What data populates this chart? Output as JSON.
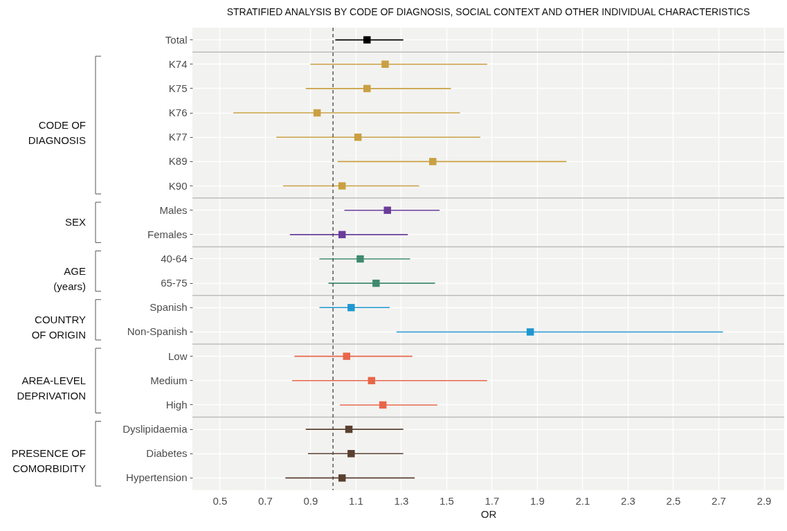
{
  "chart_data": {
    "type": "scatter",
    "orientation": "horizontal",
    "title": "STRATIFIED ANALYSIS BY CODE OF DIAGNOSIS, SOCIAL CONTEXT AND OTHER INDIVIDUAL CHARACTERISTICS",
    "xlabel": "OR",
    "categories": [
      "Total",
      "K74",
      "K75",
      "K76",
      "K77",
      "K89",
      "K90",
      "Males",
      "Females",
      "40-64",
      "65-75",
      "Spanish",
      "Non-Spanish",
      "Low",
      "Medium",
      "High",
      "Dyslipidaemia",
      "Diabetes",
      "Hypertension"
    ],
    "series": [
      {
        "color": "#000000",
        "values": [
          1.15,
          null,
          null,
          null,
          null,
          null,
          null,
          null,
          null,
          null,
          null,
          null,
          null,
          null,
          null,
          null,
          null,
          null,
          null
        ],
        "errors": [
          [
            1.01,
            1.31
          ],
          null,
          null,
          null,
          null,
          null,
          null,
          null,
          null,
          null,
          null,
          null,
          null,
          null,
          null,
          null,
          null,
          null,
          null
        ]
      },
      {
        "color": "#c9a042",
        "values": [
          null,
          1.23,
          1.15,
          0.93,
          1.11,
          1.44,
          1.04,
          null,
          null,
          null,
          null,
          null,
          null,
          null,
          null,
          null,
          null,
          null,
          null
        ],
        "errors": [
          null,
          [
            0.9,
            1.68
          ],
          [
            0.88,
            1.52
          ],
          [
            0.56,
            1.56
          ],
          [
            0.75,
            1.65
          ],
          [
            1.02,
            2.03
          ],
          [
            0.78,
            1.38
          ],
          null,
          null,
          null,
          null,
          null,
          null,
          null,
          null,
          null,
          null,
          null,
          null
        ]
      },
      {
        "color": "#6a3d9a",
        "values": [
          null,
          null,
          null,
          null,
          null,
          null,
          null,
          1.24,
          1.04,
          null,
          null,
          null,
          null,
          null,
          null,
          null,
          null,
          null,
          null
        ],
        "errors": [
          null,
          null,
          null,
          null,
          null,
          null,
          null,
          [
            1.05,
            1.47
          ],
          [
            0.81,
            1.33
          ],
          null,
          null,
          null,
          null,
          null,
          null,
          null,
          null,
          null,
          null
        ]
      },
      {
        "color": "#3f8a70",
        "values": [
          null,
          null,
          null,
          null,
          null,
          null,
          null,
          null,
          null,
          1.12,
          1.19,
          null,
          null,
          null,
          null,
          null,
          null,
          null,
          null
        ],
        "errors": [
          null,
          null,
          null,
          null,
          null,
          null,
          null,
          null,
          null,
          [
            0.94,
            1.34
          ],
          [
            0.98,
            1.45
          ],
          null,
          null,
          null,
          null,
          null,
          null,
          null,
          null
        ]
      },
      {
        "color": "#1f97d0",
        "values": [
          null,
          null,
          null,
          null,
          null,
          null,
          null,
          null,
          null,
          null,
          null,
          1.08,
          1.87,
          null,
          null,
          null,
          null,
          null,
          null
        ],
        "errors": [
          null,
          null,
          null,
          null,
          null,
          null,
          null,
          null,
          null,
          null,
          null,
          [
            0.94,
            1.25
          ],
          [
            1.28,
            2.72
          ],
          null,
          null,
          null,
          null,
          null,
          null
        ]
      },
      {
        "color": "#e8664a",
        "values": [
          null,
          null,
          null,
          null,
          null,
          null,
          null,
          null,
          null,
          null,
          null,
          null,
          null,
          1.06,
          1.17,
          1.22,
          null,
          null,
          null
        ],
        "errors": [
          null,
          null,
          null,
          null,
          null,
          null,
          null,
          null,
          null,
          null,
          null,
          null,
          null,
          [
            0.83,
            1.35
          ],
          [
            0.82,
            1.68
          ],
          [
            1.03,
            1.46
          ],
          null,
          null,
          null
        ]
      },
      {
        "color": "#5a4030",
        "values": [
          null,
          null,
          null,
          null,
          null,
          null,
          null,
          null,
          null,
          null,
          null,
          null,
          null,
          null,
          null,
          null,
          1.07,
          1.08,
          1.04
        ],
        "errors": [
          null,
          null,
          null,
          null,
          null,
          null,
          null,
          null,
          null,
          null,
          null,
          null,
          null,
          null,
          null,
          null,
          [
            0.88,
            1.31
          ],
          [
            0.89,
            1.31
          ],
          [
            0.79,
            1.36
          ]
        ]
      }
    ],
    "annotations": [
      "CODE OF DIAGNOSIS",
      "SEX",
      "AGE (years)",
      "COUNTRY OF ORIGIN",
      "AREA-LEVEL DEPRIVATION",
      "PRESENCE OF COMORBIDITY"
    ],
    "xlim": [
      0.38,
      2.99
    ],
    "xticks": [
      0.5,
      0.7,
      0.9,
      1.1,
      1.3,
      1.5,
      1.7,
      1.9,
      2.1,
      2.3,
      2.5,
      2.7,
      2.9
    ],
    "ref_lines": [
      {
        "axis": "x",
        "value": 1,
        "color": "#333333",
        "line_style": "dashed"
      }
    ],
    "grid": true,
    "marker": "square"
  }
}
